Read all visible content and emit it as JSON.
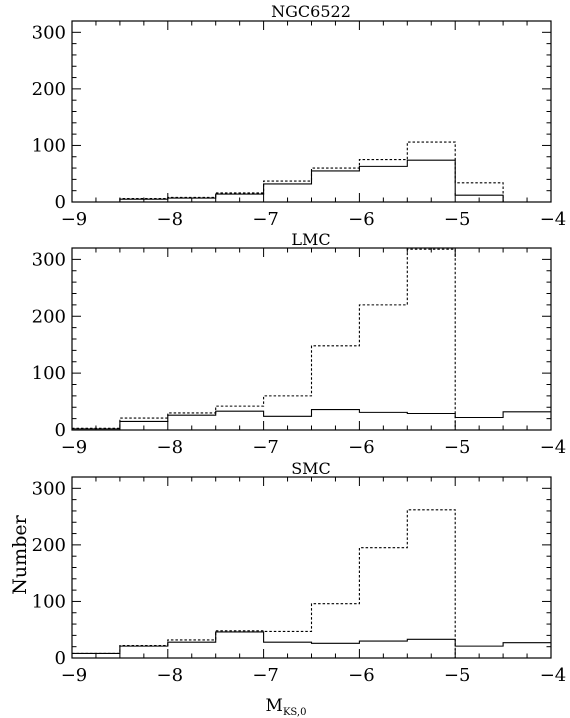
{
  "chart_data": [
    {
      "type": "histogram",
      "title": "NGC6522",
      "xlim": [
        -9,
        -4
      ],
      "ylim": [
        0,
        320
      ],
      "xticks": [
        -9,
        -8,
        -7,
        -6,
        -5,
        -4
      ],
      "yticks": [
        0,
        100,
        200,
        300
      ],
      "bin_edges": [
        -9,
        -8.5,
        -8,
        -7.5,
        -7,
        -6.5,
        -6,
        -5.5,
        -5,
        -4.5,
        -4
      ],
      "series": [
        {
          "style": "solid",
          "values": [
            0,
            5,
            7,
            14,
            32,
            55,
            63,
            74,
            12,
            0
          ]
        },
        {
          "style": "dotted",
          "values": [
            0,
            6,
            8,
            16,
            37,
            60,
            75,
            106,
            34,
            0
          ]
        }
      ]
    },
    {
      "type": "histogram",
      "title": "LMC",
      "xlim": [
        -9,
        -4
      ],
      "ylim": [
        0,
        320
      ],
      "xticks": [
        -9,
        -8,
        -7,
        -6,
        -5,
        -4
      ],
      "yticks": [
        0,
        100,
        200,
        300
      ],
      "bin_edges": [
        -9,
        -8.5,
        -8,
        -7.5,
        -7,
        -6.5,
        -6,
        -5.5,
        -5,
        -4.5,
        -4
      ],
      "series": [
        {
          "style": "solid",
          "values": [
            2,
            15,
            26,
            33,
            24,
            36,
            31,
            29,
            22,
            32
          ]
        },
        {
          "style": "dotted",
          "values": [
            3,
            21,
            30,
            42,
            60,
            148,
            220,
            318,
            0,
            0
          ]
        }
      ]
    },
    {
      "type": "histogram",
      "title": "SMC",
      "xlim": [
        -9,
        -4
      ],
      "ylim": [
        0,
        320
      ],
      "xticks": [
        -9,
        -8,
        -7,
        -6,
        -5,
        -4
      ],
      "yticks": [
        0,
        100,
        200,
        300
      ],
      "bin_edges": [
        -9,
        -8.5,
        -8,
        -7.5,
        -7,
        -6.5,
        -6,
        -5.5,
        -5,
        -4.5,
        -4
      ],
      "series": [
        {
          "style": "solid",
          "values": [
            8,
            21,
            28,
            46,
            28,
            26,
            30,
            33,
            21,
            27
          ]
        },
        {
          "style": "dotted",
          "values": [
            8,
            22,
            32,
            48,
            47,
            96,
            195,
            262,
            0,
            0
          ]
        }
      ]
    }
  ],
  "axes": {
    "xlabel_main": "M",
    "xlabel_sub": "KS,0",
    "ylabel": "Number"
  }
}
